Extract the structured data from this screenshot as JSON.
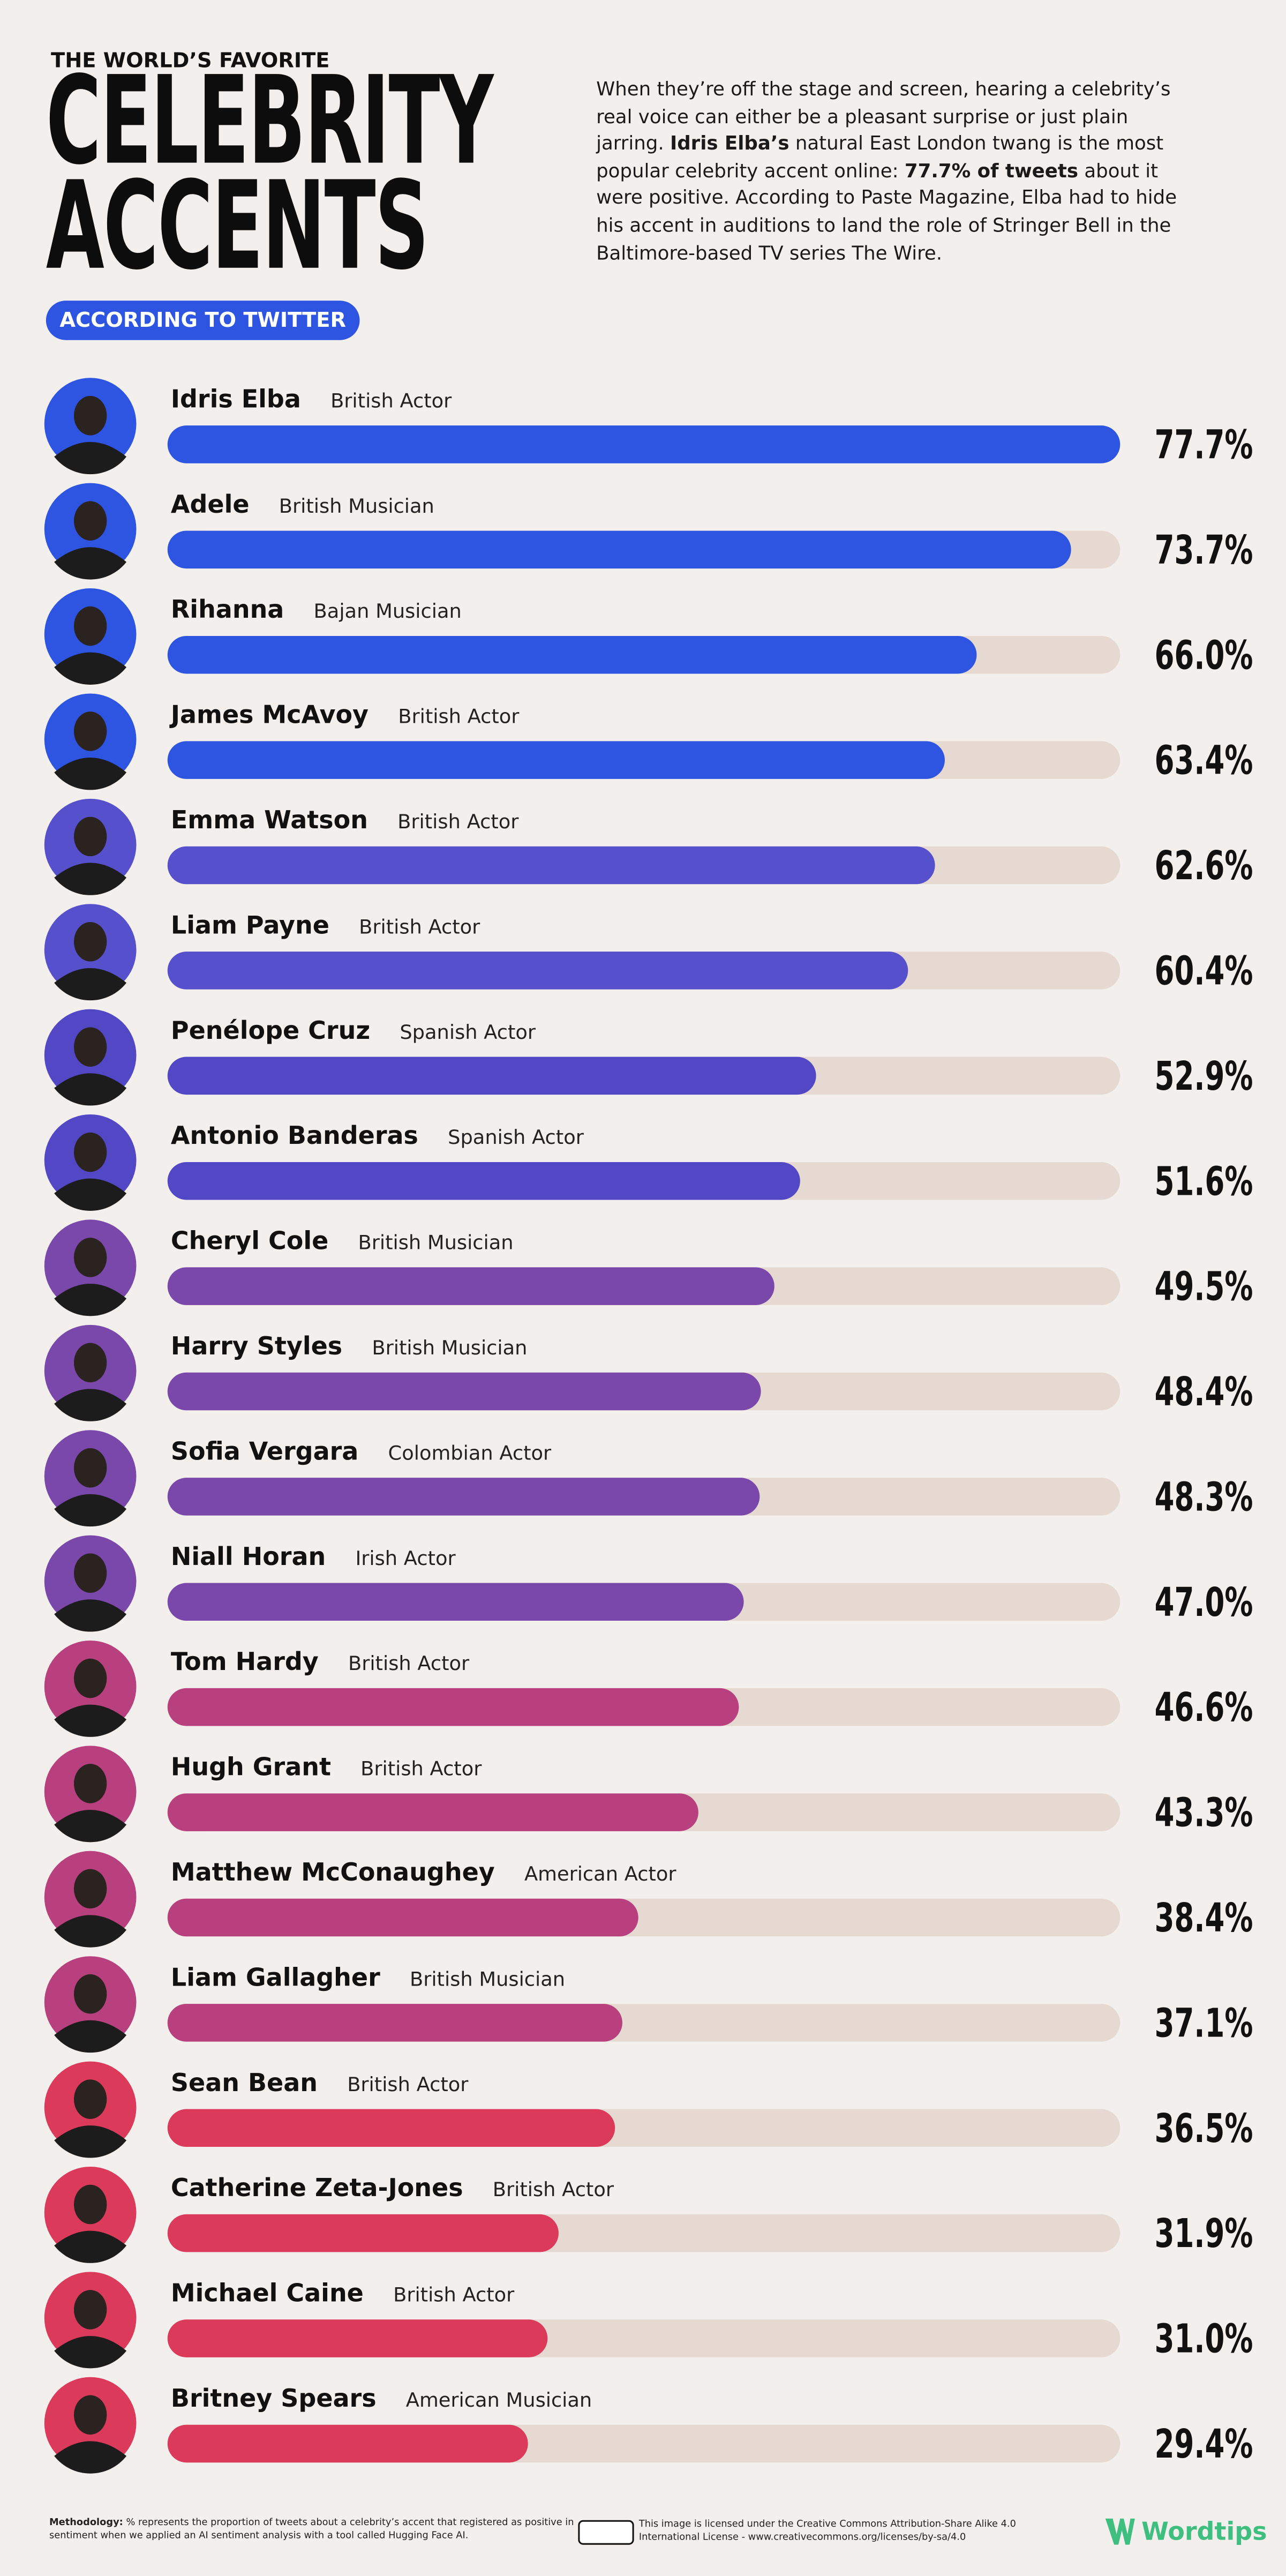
{
  "chart_data": {
    "type": "bar",
    "kicker": "THE WORLD’S FAVORITE",
    "title": "CELEBRITY ACCENTS",
    "badge": "ACCORDING TO TWITTER",
    "description": [
      "When they’re off the stage and screen, hearing a celebrity’s real voice can either be a pleasant surprise or just plain jarring. ",
      "Idris Elba’s",
      " natural East London twang is the most popular celebrity accent online: ",
      "77.7% of tweets",
      " about it were positive. According to Paste Magazine, Elba had to hide his accent in auditions to land the role of Stringer Bell in the Baltimore-based TV series The Wire."
    ],
    "categories": [
      "Idris Elba",
      "Adele",
      "Rihanna",
      "James McAvoy",
      "Emma Watson",
      "Liam Payne",
      "Penélope Cruz",
      "Antonio Banderas",
      "Cheryl Cole",
      "Harry Styles",
      "Sofia Vergara",
      "Niall Horan",
      "Tom Hardy",
      "Hugh Grant",
      "Matthew McConaughey",
      "Liam Gallagher",
      "Sean Bean",
      "Catherine Zeta-Jones",
      "Michael Caine",
      "Britney Spears"
    ],
    "roles": [
      "British Actor",
      "British Musician",
      "Bajan Musician",
      "British Actor",
      "British Actor",
      "British Actor",
      "Spanish Actor",
      "Spanish Actor",
      "British Musician",
      "British Musician",
      "Colombian Actor",
      "Irish Actor",
      "British Actor",
      "British Actor",
      "American Actor",
      "British Musician",
      "British Actor",
      "British Actor",
      "British Actor",
      "American Musician"
    ],
    "values": [
      77.7,
      73.7,
      66.0,
      63.4,
      62.6,
      60.4,
      52.9,
      51.6,
      49.5,
      48.4,
      48.3,
      47.0,
      46.6,
      43.3,
      38.4,
      37.1,
      36.5,
      31.9,
      31.0,
      29.4
    ],
    "value_labels": [
      "77.7%",
      "73.7%",
      "66.0%",
      "63.4%",
      "62.6%",
      "60.4%",
      "52.9%",
      "51.6%",
      "49.5%",
      "48.4%",
      "48.3%",
      "47.0%",
      "46.6%",
      "43.3%",
      "38.4%",
      "37.1%",
      "36.5%",
      "31.9%",
      "31.0%",
      "29.4%"
    ],
    "colors": [
      "#2e55e2",
      "#2e55e2",
      "#2e55e2",
      "#2e55e2",
      "#5650cc",
      "#5650cc",
      "#5248c6",
      "#5248c6",
      "#7a48aa",
      "#7a48aa",
      "#7a48aa",
      "#7a48aa",
      "#b8407e",
      "#b8407e",
      "#b8407e",
      "#b8407e",
      "#dc3a5a",
      "#dc3a5a",
      "#dc3a5a",
      "#dc3a5a"
    ],
    "xlim": [
      0,
      77.7
    ],
    "methodology_label": "Methodology:",
    "methodology": " % represents the proportion of tweets about a celebrity’s accent that registered as positive in sentiment when we applied an AI sentiment analysis with a tool called Hugging Face AI.",
    "license": "This image is licensed under the Creative Commons Attribution-Share Alike 4.0 International License - www.creativecommons.org/licenses/by-sa/4.0",
    "logo": "Wordtips"
  }
}
